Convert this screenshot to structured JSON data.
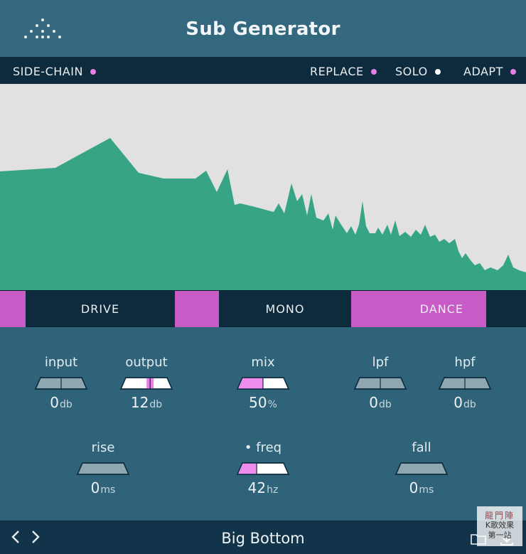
{
  "header": {
    "title": "Sub Generator",
    "logo_icon": "dot-grid-logo-icon"
  },
  "toggles": [
    {
      "label": "SIDE-CHAIN",
      "dot_color": "#e97fe5"
    },
    {
      "label": "REPLACE",
      "dot_color": "#e97fe5"
    },
    {
      "label": "SOLO",
      "dot_color": "#ffffff"
    },
    {
      "label": "ADAPT",
      "dot_color": "#e97fe5"
    }
  ],
  "spectrum": {
    "fill_color": "#37a585",
    "background": "#e1e1e1"
  },
  "modes": [
    {
      "label": "DRIVE"
    },
    {
      "label": "MONO"
    },
    {
      "label": "DANCE",
      "active": true
    }
  ],
  "controls": {
    "input": {
      "label": "input",
      "value": "0",
      "unit": "db",
      "level": 0.5,
      "fill": "none"
    },
    "output": {
      "label": "output",
      "value": "12",
      "unit": "db",
      "level": 0.57,
      "fill": "marker"
    },
    "mix": {
      "label": "mix",
      "value": "50",
      "unit": "%",
      "level": 0.5,
      "fill": "left"
    },
    "lpf": {
      "label": "lpf",
      "value": "0",
      "unit": "db",
      "level": 0.5,
      "fill": "none"
    },
    "hpf": {
      "label": "hpf",
      "value": "0",
      "unit": "db",
      "level": 0.5,
      "fill": "none"
    },
    "rise": {
      "label": "rise",
      "value": "0",
      "unit": "ms",
      "level": 0,
      "fill": "none"
    },
    "freq": {
      "label": "• freq",
      "value": "42",
      "unit": "hz",
      "level": 0.38,
      "fill": "left"
    },
    "fall": {
      "label": "fall",
      "value": "0",
      "unit": "ms",
      "level": 0,
      "fill": "none"
    }
  },
  "footer": {
    "prev_label": "‹",
    "next_label": "›",
    "preset_name": "Big Bottom",
    "folder_icon": "folder-icon",
    "save_icon": "save-icon"
  },
  "watermark": {
    "line1": "龍門陣",
    "line2": "K歌效果",
    "line3": "第一站"
  },
  "colors": {
    "accent": "#c95bc7",
    "dark": "#0d2b3d",
    "panel": "#2f6379"
  }
}
